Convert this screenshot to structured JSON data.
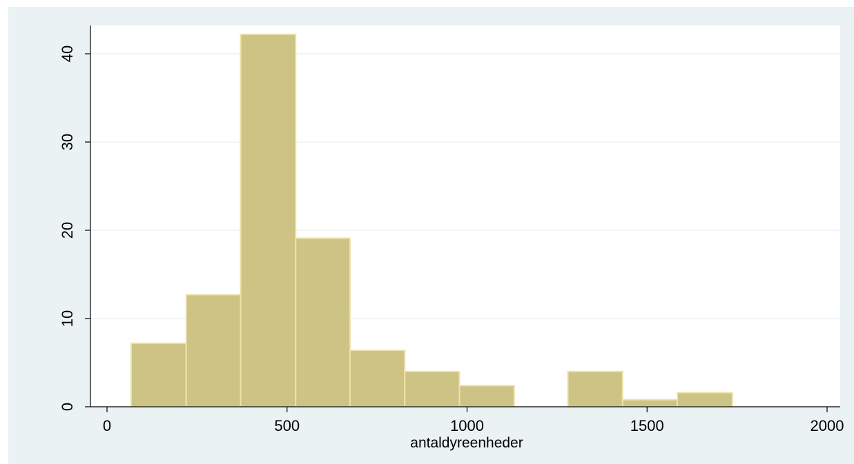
{
  "chart_data": {
    "type": "bar",
    "subtype": "histogram",
    "title": "",
    "xlabel": "antaldyreenheder",
    "ylabel": "",
    "xlim": [
      0,
      2000
    ],
    "ylim": [
      0,
      43
    ],
    "x_ticks": [
      0,
      500,
      1000,
      1500,
      2000
    ],
    "y_ticks": [
      0,
      10,
      20,
      30,
      40
    ],
    "x_tick_labels": [
      "0",
      "500",
      "1000",
      "1500",
      "2000"
    ],
    "y_tick_labels": [
      "0",
      "10",
      "20",
      "30",
      "40"
    ],
    "grid": "horizontal",
    "legend": "none",
    "bins": [
      {
        "start": 67,
        "end": 220,
        "value": 7.2
      },
      {
        "start": 220,
        "end": 371,
        "value": 12.7
      },
      {
        "start": 371,
        "end": 524,
        "value": 42.2
      },
      {
        "start": 524,
        "end": 675,
        "value": 19.1
      },
      {
        "start": 675,
        "end": 827,
        "value": 6.4
      },
      {
        "start": 827,
        "end": 979,
        "value": 4.0
      },
      {
        "start": 979,
        "end": 1131,
        "value": 2.4
      },
      {
        "start": 1131,
        "end": 1280,
        "value": 0
      },
      {
        "start": 1280,
        "end": 1432,
        "value": 4.0
      },
      {
        "start": 1432,
        "end": 1584,
        "value": 0.8
      },
      {
        "start": 1584,
        "end": 1737,
        "value": 1.6
      }
    ]
  },
  "colors": {
    "outer_background": "#eaf2f3",
    "plot_background": "#ffffff",
    "gridline": "#eaf2f3",
    "bar_fill": "#cdc384",
    "bar_edge": "#ede3ab",
    "axis": "#000000",
    "text": "#000000"
  }
}
